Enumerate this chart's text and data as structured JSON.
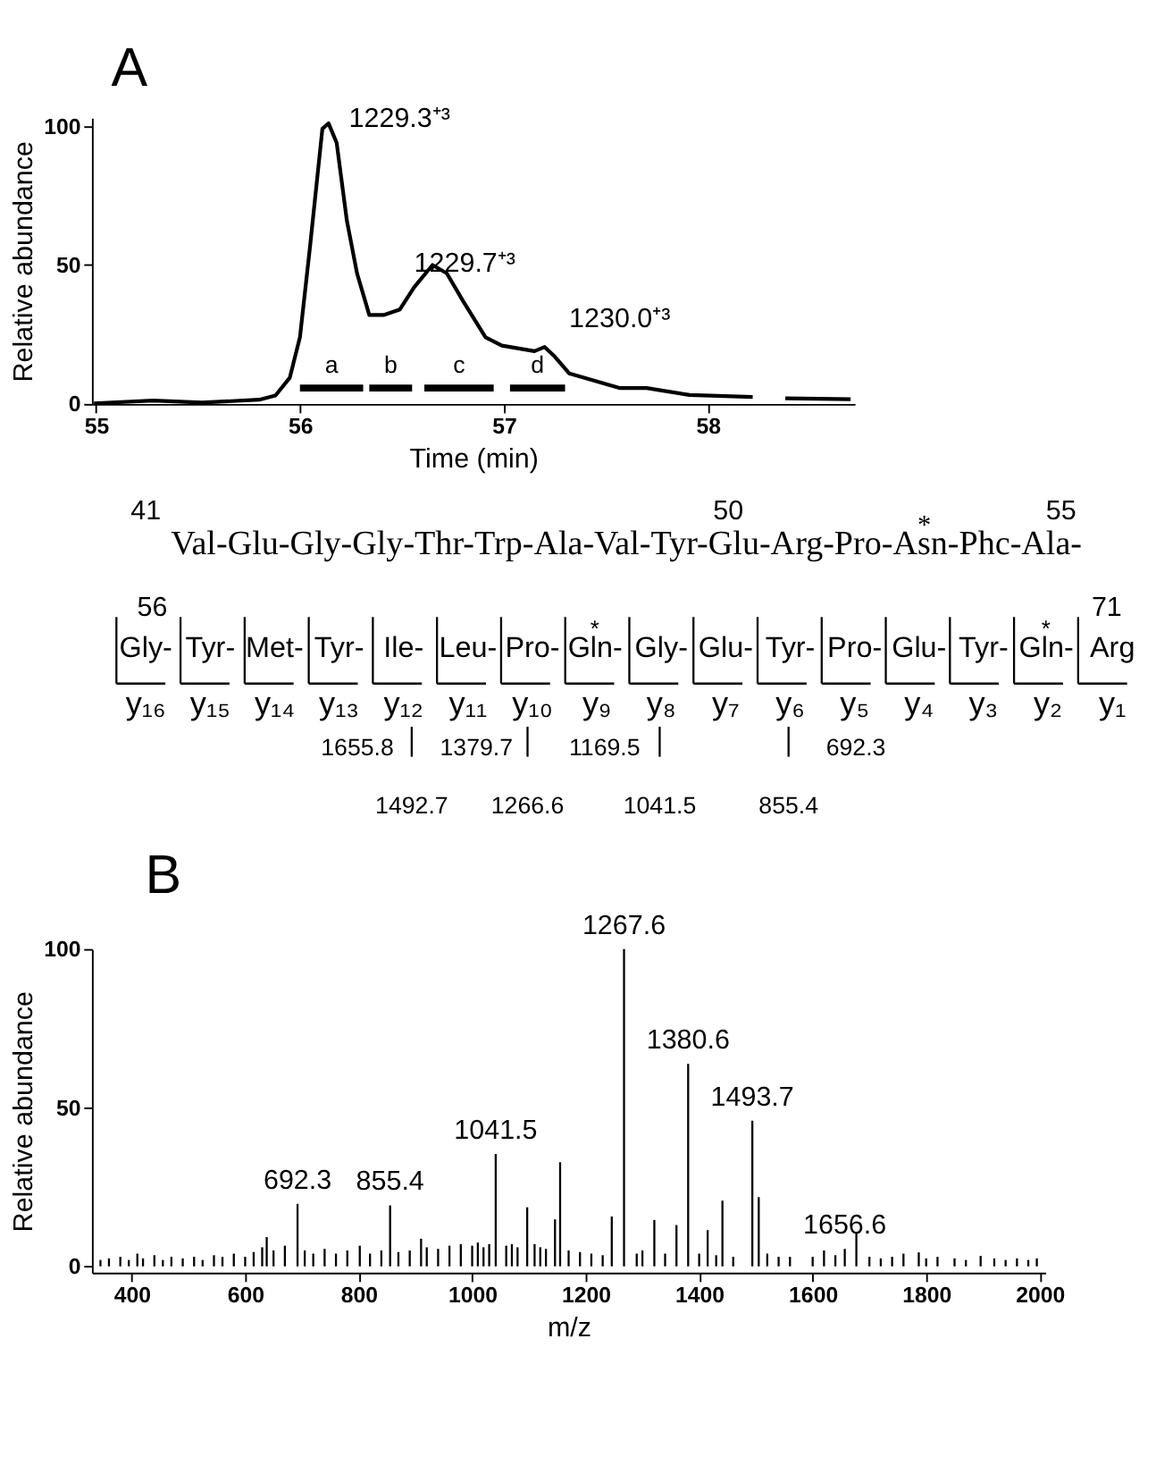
{
  "chart_data": [
    {
      "type": "line",
      "title": "A",
      "xlabel": "Time (min)",
      "ylabel": "Relative abundance",
      "x": [
        54.99,
        55.28,
        55.52,
        55.8,
        55.88,
        55.95,
        56.0,
        56.05,
        56.11,
        56.14,
        56.18,
        56.23,
        56.28,
        56.34,
        56.41,
        56.49,
        56.56,
        56.65,
        56.72,
        56.8,
        56.91,
        56.99,
        57.15,
        57.2,
        57.25,
        57.32,
        57.57,
        57.7,
        57.91,
        58.22
      ],
      "series": [
        {
          "color": "#000000",
          "values": [
            0.2,
            1.2,
            0.5,
            1.5,
            3,
            9.4,
            24,
            57,
            99,
            101,
            94,
            66,
            47,
            32,
            32,
            34,
            42,
            50,
            47,
            37,
            24,
            21,
            19,
            20.5,
            17,
            11,
            5.7,
            5.7,
            3.2,
            2.5
          ]
        },
        {
          "color": "#000000",
          "x": [
            58.38,
            58.7
          ],
          "values": [
            2,
            1.7
          ]
        },
        {
          "name": "a",
          "color": "#000000",
          "x": [
            56.0,
            56.31
          ],
          "values": [
            5.7,
            5.7
          ]
        },
        {
          "name": "b",
          "color": "#000000",
          "x": [
            56.34,
            56.55
          ],
          "values": [
            5.7,
            5.7
          ]
        },
        {
          "name": "c",
          "color": "#000000",
          "x": [
            56.61,
            56.95
          ],
          "values": [
            5.7,
            5.7
          ]
        },
        {
          "name": "d",
          "color": "#000000",
          "x": [
            57.03,
            57.3
          ],
          "values": [
            5.7,
            5.7
          ]
        }
      ],
      "xlim": [
        54.98,
        58.72
      ],
      "ylim": [
        0,
        103
      ],
      "xticks": [
        55,
        56,
        57,
        58
      ],
      "yticks": [
        0,
        50,
        100
      ],
      "annotations": [
        {
          "text": "1229.3⁺³",
          "x": 56.19,
          "y": 88
        },
        {
          "text": "1229.7⁺³",
          "x": 56.51,
          "y": 36
        },
        {
          "text": "1230.0⁺³",
          "x": 57.27,
          "y": 16
        }
      ]
    },
    {
      "type": "other",
      "annotations": [
        "41",
        "50",
        "55",
        "Val-Glu-Gly-Gly-Thr-Trp-Ala-Val-Tyr-Glu-Arg-Pro-A$^{*}$sn-Phc-Ala-",
        "56",
        "71",
        "Gly-",
        "Tyr-",
        "Met-",
        "Tyr-",
        "Ile-",
        "Leu-",
        "Pro-",
        "G$^{*}$ln-",
        "Gly-",
        "Glu-",
        "Tyr-",
        "Pro-",
        "Glu-",
        "Tyr-",
        "G$^{*}$ln-",
        "Arg",
        "y₁₆",
        "y₁₅",
        "y₁₄",
        "y₁₃",
        "y₁₂",
        "y₁₁",
        "y₁₀",
        "y₉",
        "y₈",
        "y₇",
        "y₆",
        "y₅",
        "y₄",
        "y₃",
        "y₂",
        "y₁",
        "1655.8",
        "1492.7",
        "1379.7",
        "1266.6",
        "1169.5",
        "1041.5",
        "692.3",
        "855.4"
      ]
    },
    {
      "type": "bar",
      "title": "B",
      "xlabel": "m/z",
      "ylabel": "Relative abundance",
      "color": "#000000",
      "x": [
        345,
        360,
        380,
        395,
        410,
        420,
        440,
        455,
        470,
        490,
        510,
        525,
        545,
        560,
        580,
        600,
        615,
        630,
        638,
        650,
        670,
        692.3,
        705,
        720,
        740,
        760,
        780,
        802,
        820,
        840,
        855.4,
        870,
        890,
        910,
        920,
        940,
        960,
        980,
        1000,
        1010,
        1020,
        1030,
        1041.5,
        1060,
        1070,
        1080,
        1097,
        1110,
        1120,
        1130,
        1146,
        1155,
        1170,
        1190,
        1210,
        1230,
        1246,
        1267.6,
        1290,
        1300,
        1321,
        1340,
        1360,
        1380.6,
        1400,
        1415,
        1430,
        1441,
        1460,
        1493.7,
        1505,
        1520,
        1540,
        1560,
        1600,
        1620,
        1640,
        1656.6,
        1677,
        1700,
        1720,
        1740,
        1760,
        1787,
        1800,
        1820,
        1850,
        1870,
        1896,
        1920,
        1940,
        1960,
        1980,
        1995
      ],
      "values": [
        2,
        2.5,
        3,
        2,
        4,
        2.5,
        3.5,
        2,
        3,
        2.5,
        3,
        2,
        3.5,
        3,
        4,
        3,
        4.5,
        6,
        9.2,
        5,
        6.5,
        19.7,
        5,
        4,
        5.5,
        4,
        5,
        6.5,
        4,
        5,
        19.2,
        4.5,
        5,
        8.7,
        6,
        5.5,
        6.5,
        7,
        6.5,
        7.5,
        6,
        7,
        35.4,
        6.5,
        7,
        6,
        18.6,
        7,
        6,
        5.5,
        14.8,
        32.8,
        5,
        4.5,
        4,
        3.5,
        15.7,
        100,
        4,
        5,
        14.6,
        4,
        13,
        63.8,
        4,
        11.4,
        3.5,
        20.7,
        3,
        45.9,
        21.8,
        4,
        3,
        3,
        3,
        5,
        3.5,
        5.5,
        10.9,
        3,
        2.5,
        3,
        4,
        4.4,
        2.5,
        3,
        2.5,
        2,
        3.3,
        2.5,
        2,
        2.5,
        2,
        2.5
      ],
      "xlim": [
        330,
        2010
      ],
      "ylim": [
        -2,
        100
      ],
      "xticks": [
        400,
        600,
        800,
        1000,
        1200,
        1400,
        1600,
        1800,
        2000
      ],
      "yticks": [
        0,
        50,
        100
      ],
      "annotations": [
        {
          "text": "692.3",
          "x": 692.3,
          "y": 19.7
        },
        {
          "text": "855.4",
          "x": 855.4,
          "y": 19.2
        },
        {
          "text": "1041.5",
          "x": 1041.5,
          "y": 35.4
        },
        {
          "text": "1267.6",
          "x": 1267.6,
          "y": 100
        },
        {
          "text": "1380.6",
          "x": 1380.6,
          "y": 63.8
        },
        {
          "text": "1493.7",
          "x": 1493.7,
          "y": 45.9
        },
        {
          "text": "1656.6",
          "x": 1656.6,
          "y": 5.5
        }
      ]
    }
  ]
}
